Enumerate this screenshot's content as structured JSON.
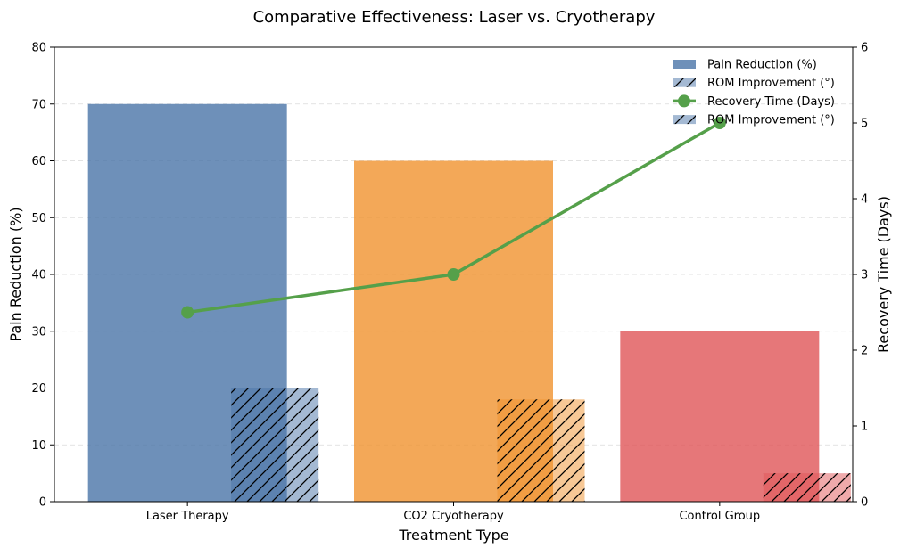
{
  "chart_data": {
    "type": "bar",
    "title": "Comparative Effectiveness: Laser vs. Cryotherapy",
    "xlabel": "Treatment Type",
    "ylabel": "Pain Reduction (%)",
    "y2label": "Recovery Time (Days)",
    "categories": [
      "Laser Therapy",
      "CO2 Cryotherapy",
      "Control Group"
    ],
    "ylim": [
      0,
      80
    ],
    "yticks": [
      "0",
      "10",
      "20",
      "30",
      "40",
      "50",
      "60",
      "70",
      "80"
    ],
    "y2lim": [
      0,
      6
    ],
    "y2ticks": [
      "0",
      "1",
      "2",
      "3",
      "4",
      "5",
      "6"
    ],
    "grid": "horizontal dashed",
    "legend_position": "top-right",
    "bar_colors": [
      "#4a74a8",
      "#f0922e",
      "#e05558"
    ],
    "series": [
      {
        "name": "Pain Reduction (%)",
        "type": "bar",
        "axis": "left",
        "values": [
          70,
          60,
          30
        ]
      },
      {
        "name": "ROM Improvement (°)",
        "type": "bar",
        "axis": "left",
        "hatch": "//",
        "values": [
          20,
          18,
          5
        ]
      },
      {
        "name": "Recovery Time (Days)",
        "type": "line",
        "axis": "right",
        "color": "#55a04a",
        "values": [
          2.5,
          3.0,
          5.0
        ]
      }
    ],
    "legend_entries": [
      "Pain Reduction (%)",
      "ROM Improvement (°)",
      "Recovery Time (Days)",
      "ROM Improvement (°)"
    ]
  }
}
